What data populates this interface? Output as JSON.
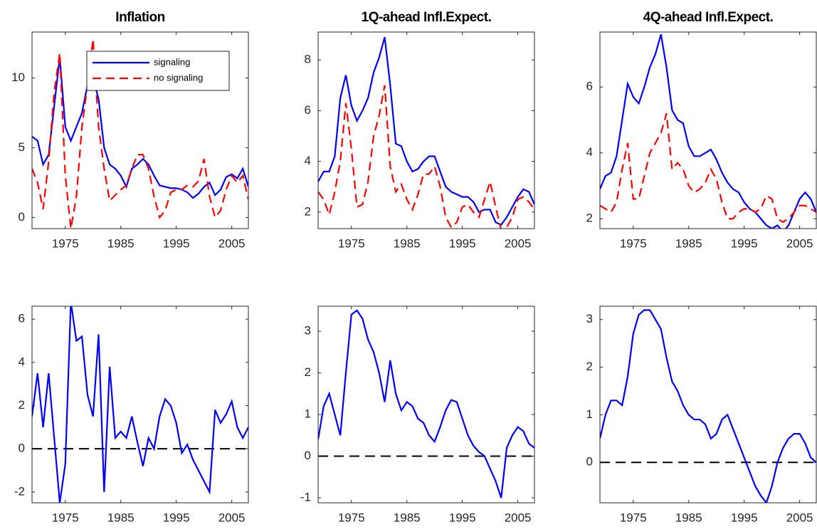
{
  "chart_data": [
    {
      "type": "line",
      "title": "Inflation",
      "x": [
        1969,
        1970,
        1971,
        1972,
        1973,
        1974,
        1975,
        1976,
        1977,
        1978,
        1979,
        1980,
        1981,
        1982,
        1983,
        1984,
        1985,
        1986,
        1987,
        1988,
        1989,
        1990,
        1991,
        1992,
        1993,
        1994,
        1995,
        1996,
        1997,
        1998,
        1999,
        2000,
        2001,
        2002,
        2003,
        2004,
        2005,
        2006,
        2007,
        2008
      ],
      "series": [
        {
          "name": "signaling",
          "color": "#0000ff",
          "linestyle": "solid",
          "values": [
            5.8,
            5.5,
            3.8,
            4.5,
            8,
            11.5,
            6.5,
            5.5,
            6.5,
            7.5,
            9.5,
            10,
            8.5,
            5,
            3.8,
            3.5,
            3,
            2.2,
            3.5,
            3.8,
            4.2,
            3.8,
            3,
            2.3,
            2.2,
            2.1,
            2.1,
            2,
            1.8,
            1.4,
            1.7,
            2.2,
            2.5,
            1.6,
            2.0,
            2.9,
            3.1,
            2.8,
            3.5,
            2.2
          ]
        },
        {
          "name": "no signaling",
          "color": "#ff0000",
          "linestyle": "dashed",
          "values": [
            3.5,
            2.5,
            0.6,
            4,
            9,
            11.8,
            3,
            -0.8,
            1.5,
            6.5,
            9.5,
            12.8,
            6.5,
            3.5,
            1.2,
            1.6,
            2,
            2.3,
            3.5,
            4.5,
            4.5,
            3.5,
            1.5,
            0,
            0.5,
            1.8,
            2.0,
            2,
            2.3,
            2.2,
            2.6,
            4.2,
            1.5,
            0,
            0.5,
            2,
            3,
            2.5,
            3,
            1.3
          ]
        }
      ],
      "xlim": [
        1969,
        2008
      ],
      "xticks": [
        1975,
        1985,
        1995,
        2005
      ],
      "ylim": [
        -0.8,
        13.3
      ],
      "yticks": [
        0,
        5,
        10
      ],
      "legend": "upper right"
    },
    {
      "type": "line",
      "title": "1Q-ahead Infl.Expect.",
      "x": [
        1969,
        1970,
        1971,
        1972,
        1973,
        1974,
        1975,
        1976,
        1977,
        1978,
        1979,
        1980,
        1981,
        1982,
        1983,
        1984,
        1985,
        1986,
        1987,
        1988,
        1989,
        1990,
        1991,
        1992,
        1993,
        1994,
        1995,
        1996,
        1997,
        1998,
        1999,
        2000,
        2001,
        2002,
        2003,
        2004,
        2005,
        2006,
        2007,
        2008
      ],
      "series": [
        {
          "color": "#0000ff",
          "linestyle": "solid",
          "values": [
            3.2,
            3.6,
            3.6,
            4.2,
            6.5,
            7.4,
            6.2,
            5.6,
            6,
            6.5,
            7.5,
            8.1,
            8.9,
            7,
            4.7,
            4.6,
            4.0,
            3.6,
            3.7,
            4.0,
            4.2,
            4.2,
            3.6,
            3.0,
            2.8,
            2.7,
            2.6,
            2.6,
            2.4,
            2.0,
            2.1,
            2.1,
            1.6,
            1.5,
            1.8,
            2.2,
            2.6,
            2.9,
            2.8,
            2.3
          ]
        },
        {
          "color": "#ff0000",
          "linestyle": "dashed",
          "values": [
            2.8,
            2.5,
            1.9,
            2.8,
            4.0,
            6.3,
            4.5,
            2.2,
            2.3,
            3.2,
            5,
            5.8,
            7,
            3.8,
            2.8,
            3.1,
            2.5,
            2.1,
            2.7,
            3.5,
            3.5,
            3.8,
            3.0,
            1.8,
            1.4,
            1.6,
            2.2,
            2.3,
            2.0,
            1.8,
            2.5,
            3.2,
            2.2,
            1.3,
            1.4,
            1.8,
            2.5,
            2.6,
            2.4,
            2.1
          ]
        }
      ],
      "xlim": [
        1969,
        2008
      ],
      "xticks": [
        1975,
        1985,
        1995,
        2005
      ],
      "ylim": [
        1.35,
        9.1
      ],
      "yticks": [
        2,
        4,
        6,
        8
      ]
    },
    {
      "type": "line",
      "title": "4Q-ahead Infl.Expect.",
      "x": [
        1969,
        1970,
        1971,
        1972,
        1973,
        1974,
        1975,
        1976,
        1977,
        1978,
        1979,
        1980,
        1981,
        1982,
        1983,
        1984,
        1985,
        1986,
        1987,
        1988,
        1989,
        1990,
        1991,
        1992,
        1993,
        1994,
        1995,
        1996,
        1997,
        1998,
        1999,
        2000,
        2001,
        2002,
        2003,
        2004,
        2005,
        2006,
        2007,
        2008
      ],
      "series": [
        {
          "color": "#0000ff",
          "linestyle": "solid",
          "values": [
            2.9,
            3.3,
            3.4,
            3.9,
            5.0,
            6.1,
            5.7,
            5.5,
            6.0,
            6.6,
            7.0,
            7.6,
            6.6,
            5.3,
            5.0,
            4.9,
            4.2,
            3.9,
            3.9,
            4.0,
            4.1,
            3.8,
            3.4,
            3.1,
            2.9,
            2.8,
            2.5,
            2.3,
            2.2,
            2.0,
            1.8,
            1.7,
            1.8,
            1.6,
            1.8,
            2.2,
            2.6,
            2.8,
            2.6,
            2.2
          ]
        },
        {
          "color": "#ff0000",
          "linestyle": "dashed",
          "values": [
            2.4,
            2.3,
            2.2,
            2.5,
            3.5,
            4.3,
            2.6,
            2.6,
            3.3,
            4.0,
            4.3,
            4.6,
            5.2,
            3.5,
            3.7,
            3.5,
            3.0,
            2.8,
            2.9,
            3.1,
            3.5,
            3.2,
            2.5,
            2.0,
            2.0,
            2.2,
            2.3,
            2.3,
            2.2,
            2.3,
            2.7,
            2.6,
            2.0,
            1.9,
            2.0,
            2.2,
            2.4,
            2.4,
            2.3,
            2.2
          ]
        }
      ],
      "xlim": [
        1969,
        2008
      ],
      "xticks": [
        1975,
        1985,
        1995,
        2005
      ],
      "ylim": [
        1.7,
        7.67
      ],
      "yticks": [
        2,
        4,
        6
      ]
    },
    {
      "type": "line",
      "x": [
        1969,
        1970,
        1971,
        1972,
        1973,
        1974,
        1975,
        1976,
        1977,
        1978,
        1979,
        1980,
        1981,
        1982,
        1983,
        1984,
        1985,
        1986,
        1987,
        1988,
        1989,
        1990,
        1991,
        1992,
        1993,
        1994,
        1995,
        1996,
        1997,
        1998,
        1999,
        2000,
        2001,
        2002,
        2003,
        2004,
        2005,
        2006,
        2007,
        2008
      ],
      "series": [
        {
          "color": "#0000ff",
          "linestyle": "solid",
          "values": [
            1.5,
            3.5,
            1.0,
            3.5,
            0.5,
            -2.5,
            -0.7,
            6.8,
            5,
            5.2,
            2.5,
            1.5,
            5.3,
            -2,
            3.8,
            0.5,
            0.8,
            0.5,
            1.5,
            0.3,
            -0.8,
            0.5,
            0.0,
            1.5,
            2.3,
            2.0,
            1.2,
            -0.2,
            0.2,
            -0.5,
            -1.0,
            -1.5,
            -2.0,
            1.8,
            1.2,
            1.6,
            2.2,
            1.0,
            0.5,
            1.0
          ]
        }
      ],
      "xlim": [
        1969,
        2008
      ],
      "xticks": [
        1975,
        1985,
        1995,
        2005
      ],
      "ylim": [
        -2.5,
        6.6
      ],
      "yticks": [
        -2,
        0,
        2,
        4,
        6
      ],
      "hline": 0
    },
    {
      "type": "line",
      "x": [
        1969,
        1970,
        1971,
        1972,
        1973,
        1974,
        1975,
        1976,
        1977,
        1978,
        1979,
        1980,
        1981,
        1982,
        1983,
        1984,
        1985,
        1986,
        1987,
        1988,
        1989,
        1990,
        1991,
        1992,
        1993,
        1994,
        1995,
        1996,
        1997,
        1998,
        1999,
        2000,
        2001,
        2002,
        2003,
        2004,
        2005,
        2006,
        2007,
        2008
      ],
      "series": [
        {
          "color": "#0000ff",
          "linestyle": "solid",
          "values": [
            0.4,
            1.2,
            1.5,
            1.0,
            0.5,
            2.0,
            3.4,
            3.5,
            3.3,
            2.8,
            2.5,
            2.0,
            1.3,
            2.3,
            1.5,
            1.1,
            1.3,
            1.2,
            0.9,
            0.8,
            0.5,
            0.35,
            0.7,
            1.1,
            1.35,
            1.3,
            0.9,
            0.5,
            0.25,
            0.1,
            0.0,
            -0.3,
            -0.6,
            -1.0,
            0.2,
            0.5,
            0.7,
            0.6,
            0.3,
            0.2
          ]
        }
      ],
      "xlim": [
        1969,
        2008
      ],
      "xticks": [
        1975,
        1985,
        1995,
        2005
      ],
      "ylim": [
        -1.12,
        3.6
      ],
      "yticks": [
        -1,
        0,
        1,
        2,
        3
      ],
      "hline": 0
    },
    {
      "type": "line",
      "x": [
        1969,
        1970,
        1971,
        1972,
        1973,
        1974,
        1975,
        1976,
        1977,
        1978,
        1979,
        1980,
        1981,
        1982,
        1983,
        1984,
        1985,
        1986,
        1987,
        1988,
        1989,
        1990,
        1991,
        1992,
        1993,
        1994,
        1995,
        1996,
        1997,
        1998,
        1999,
        2000,
        2001,
        2002,
        2003,
        2004,
        2005,
        2006,
        2007,
        2008
      ],
      "series": [
        {
          "color": "#0000ff",
          "linestyle": "solid",
          "values": [
            0.5,
            1.0,
            1.3,
            1.3,
            1.2,
            1.8,
            2.7,
            3.1,
            3.2,
            3.2,
            3.0,
            2.8,
            2.2,
            1.7,
            1.5,
            1.2,
            1.0,
            0.9,
            0.9,
            0.8,
            0.5,
            0.6,
            0.9,
            1.0,
            0.7,
            0.4,
            0.1,
            -0.2,
            -0.5,
            -0.7,
            -0.85,
            -0.5,
            0,
            0.3,
            0.5,
            0.6,
            0.6,
            0.4,
            0.1,
            0
          ]
        }
      ],
      "xlim": [
        1969,
        2008
      ],
      "xticks": [
        1975,
        1985,
        1995,
        2005
      ],
      "ylim": [
        -0.85,
        3.28
      ],
      "yticks": [
        0,
        1,
        2,
        3
      ],
      "hline": 0
    }
  ]
}
